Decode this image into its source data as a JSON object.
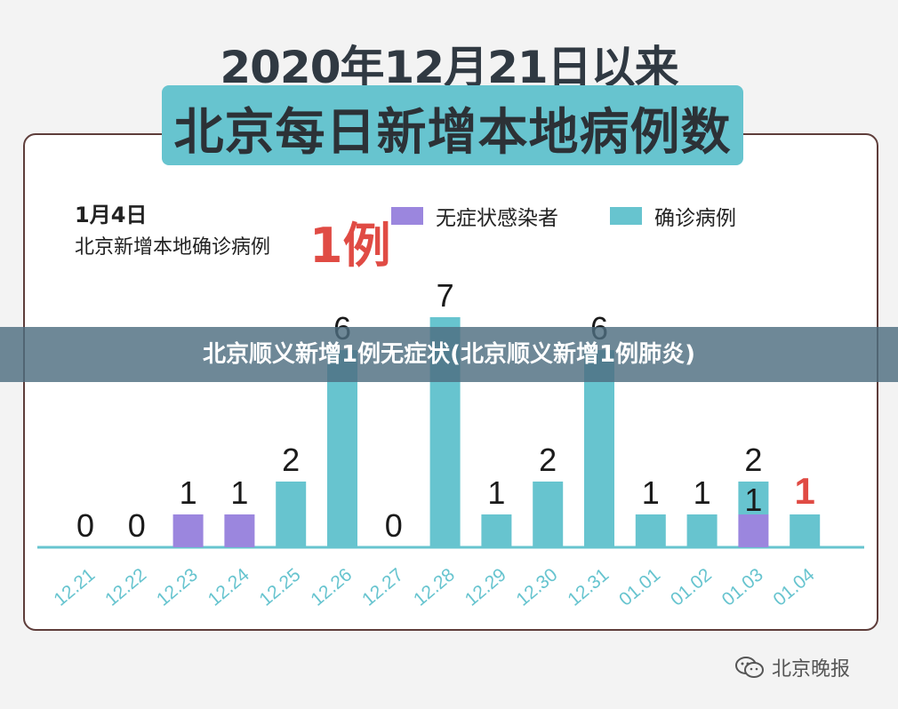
{
  "header": {
    "line1": "2020年12月21日以来",
    "line2": "北京每日新增本地病例数"
  },
  "highlight": {
    "date": "1月4日",
    "text": "北京新增本地确诊病例",
    "value": "1例"
  },
  "banner": {
    "text": "北京顺义新增1例无症状(北京顺义新增1例肺炎)"
  },
  "watermark": {
    "text": "北京晚报"
  },
  "colors": {
    "confirmed": "#67c4cf",
    "asymptomatic": "#9b86de",
    "highlight": "#e04b44",
    "axis": "#67c4cf"
  },
  "chart_data": {
    "type": "bar",
    "stacked": true,
    "categories": [
      "12.21",
      "12.22",
      "12.23",
      "12.24",
      "12.25",
      "12.26",
      "12.27",
      "12.28",
      "12.29",
      "12.30",
      "12.31",
      "01.01",
      "01.02",
      "01.03",
      "01.04"
    ],
    "series": [
      {
        "name": "无症状感染者",
        "values": [
          0,
          0,
          1,
          1,
          0,
          0,
          0,
          0,
          0,
          0,
          0,
          0,
          0,
          1,
          0
        ]
      },
      {
        "name": "确诊病例",
        "values": [
          0,
          0,
          0,
          0,
          2,
          6,
          0,
          7,
          1,
          2,
          6,
          1,
          1,
          1,
          1
        ]
      }
    ],
    "labels": [
      "0",
      "0",
      "1",
      "1",
      "2",
      "6",
      "0",
      "7",
      "1",
      "2",
      "6",
      "1",
      "1",
      "2",
      "1"
    ],
    "inner_labels": [
      null,
      null,
      null,
      null,
      null,
      null,
      null,
      null,
      null,
      null,
      null,
      null,
      null,
      "1",
      null
    ],
    "highlight_index": 14,
    "ylim": [
      0,
      7
    ],
    "legend_position": "top-right"
  }
}
